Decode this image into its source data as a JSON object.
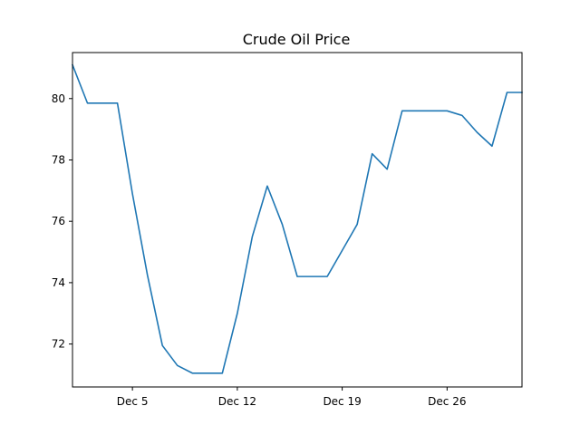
{
  "chart_data": {
    "type": "line",
    "title": "Crude Oil Price",
    "xlabel": "",
    "ylabel": "",
    "x": [
      "Dec 1",
      "Dec 2",
      "Dec 3",
      "Dec 4",
      "Dec 5",
      "Dec 6",
      "Dec 7",
      "Dec 8",
      "Dec 9",
      "Dec 10",
      "Dec 11",
      "Dec 12",
      "Dec 13",
      "Dec 14",
      "Dec 15",
      "Dec 16",
      "Dec 17",
      "Dec 18",
      "Dec 19",
      "Dec 20",
      "Dec 21",
      "Dec 22",
      "Dec 23",
      "Dec 24",
      "Dec 25",
      "Dec 26",
      "Dec 27",
      "Dec 28",
      "Dec 29",
      "Dec 30",
      "Dec 31"
    ],
    "x_index": [
      1,
      2,
      3,
      4,
      5,
      6,
      7,
      8,
      9,
      10,
      11,
      12,
      13,
      14,
      15,
      16,
      17,
      18,
      19,
      20,
      21,
      22,
      23,
      24,
      25,
      26,
      27,
      28,
      29,
      30,
      31
    ],
    "series": [
      {
        "name": "",
        "color": "#1f77b4",
        "values": [
          81.1,
          79.85,
          79.85,
          79.85,
          76.9,
          74.25,
          71.95,
          71.3,
          71.05,
          71.05,
          71.05,
          73.0,
          75.5,
          77.15,
          75.9,
          74.2,
          74.2,
          74.2,
          75.05,
          75.9,
          78.2,
          77.7,
          79.6,
          79.6,
          79.6,
          79.6,
          79.45,
          78.9,
          78.45,
          80.2,
          80.2
        ]
      }
    ],
    "xlim": [
      1,
      31
    ],
    "ylim": [
      70.6,
      81.5
    ],
    "xticks": [
      {
        "value": 5,
        "label": "Dec 5"
      },
      {
        "value": 12,
        "label": "Dec 12"
      },
      {
        "value": 19,
        "label": "Dec 19"
      },
      {
        "value": 26,
        "label": "Dec 26"
      }
    ],
    "yticks": [
      72,
      74,
      76,
      78,
      80
    ],
    "grid": false,
    "legend": "none"
  }
}
